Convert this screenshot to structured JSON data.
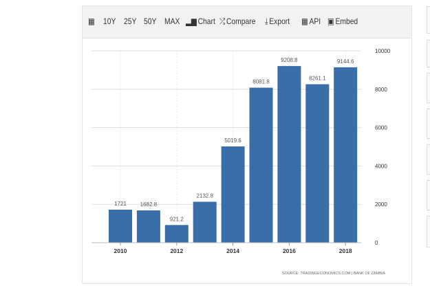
{
  "toolbar": {
    "menu_icon": "calendar-icon",
    "ranges": [
      "10Y",
      "25Y",
      "50Y",
      "MAX"
    ],
    "chart_label": "Chart",
    "compare_label": "Compare",
    "export_label": "Export",
    "api_label": "API",
    "embed_label": "Embed"
  },
  "source_text": "SOURCE: TRADINGECONOMICS.COM | BANK OF ZAMBIA",
  "colors": {
    "bar": "#3a6ea8",
    "grid": "#dcdcdc",
    "toolbar_bg": "#f2f2f2"
  },
  "chart_data": {
    "type": "bar",
    "categories": [
      "2010",
      "2011",
      "2012",
      "2013",
      "2014",
      "2015",
      "2016",
      "2017",
      "2018"
    ],
    "values": [
      1721,
      1682.8,
      921.2,
      2132.8,
      5019.6,
      8081.8,
      9208.8,
      8261.1,
      9144.6
    ],
    "value_labels": [
      "1721",
      "1682.8",
      "921.2",
      "2132.8",
      "5019.6",
      "8081.8",
      "9208.8",
      "8261.1",
      "9144.6"
    ],
    "x_tick_labels": [
      "2010",
      "2012",
      "2014",
      "2016",
      "2018"
    ],
    "y_ticks": [
      0,
      2000,
      4000,
      6000,
      8000,
      10000
    ],
    "ylim": [
      0,
      10000
    ],
    "y_axis_position": "right",
    "grid": true,
    "title": "",
    "xlabel": "",
    "ylabel": ""
  }
}
